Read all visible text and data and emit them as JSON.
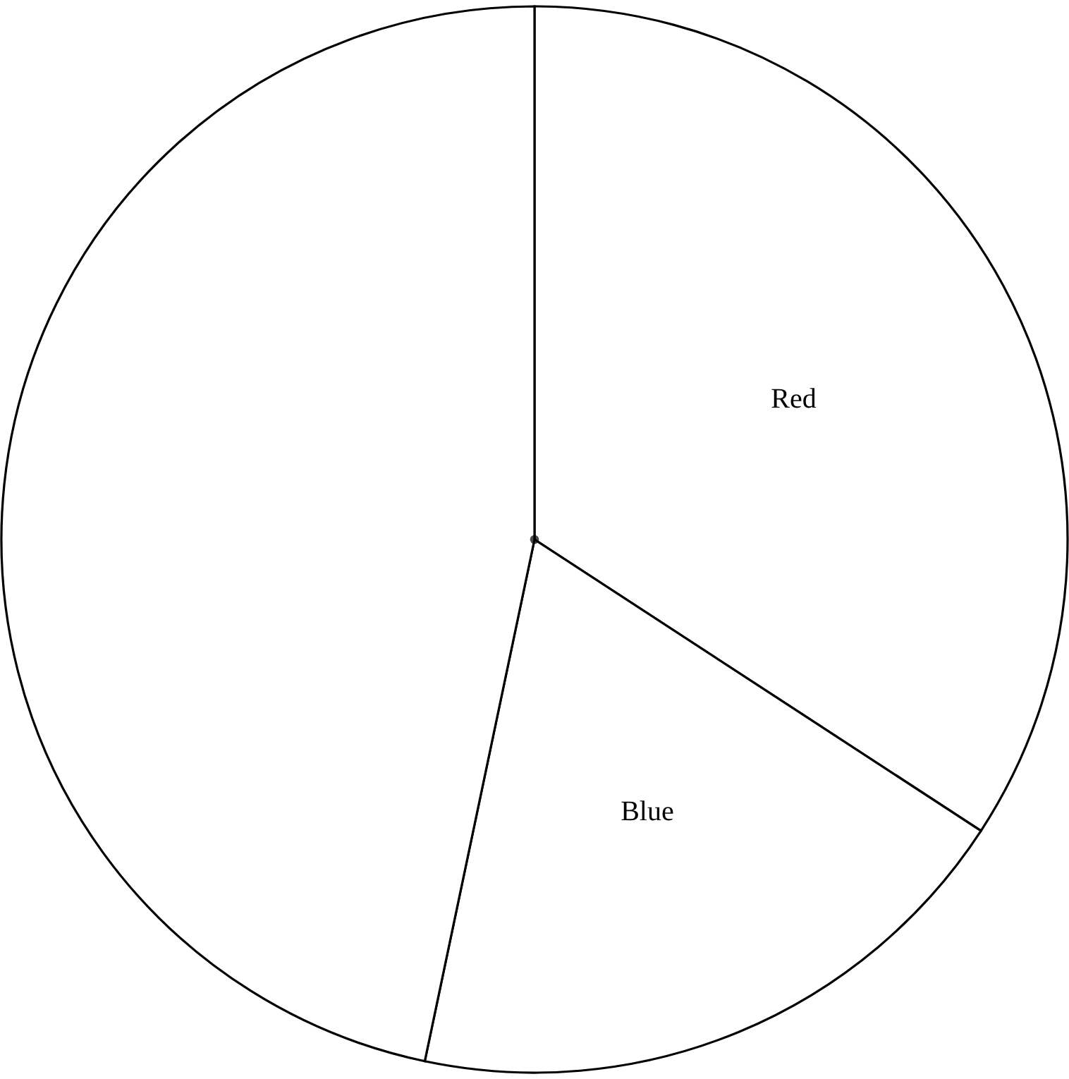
{
  "chart_data": {
    "type": "pie",
    "categories": [
      "Red",
      "Blue",
      null
    ],
    "values": [
      34.2,
      19.1,
      46.7
    ],
    "colors": [
      "#ffffff",
      "#ffffff",
      "#ffffff"
    ]
  }
}
